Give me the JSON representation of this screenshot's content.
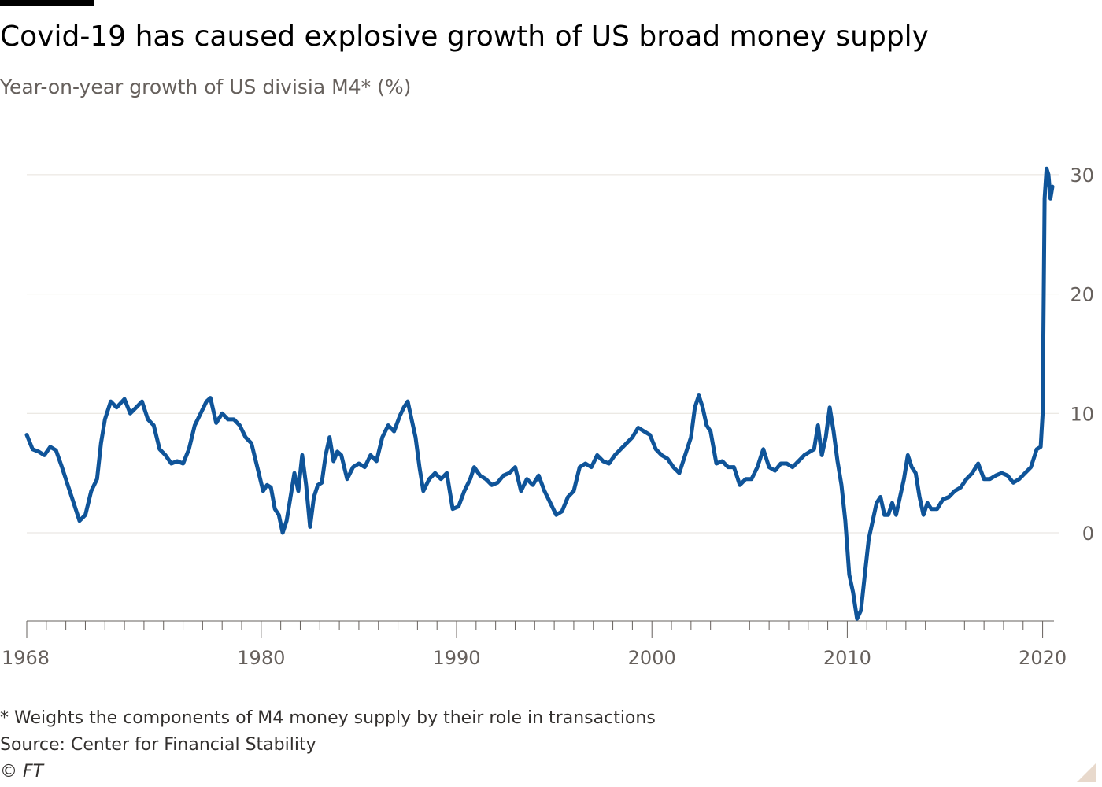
{
  "header": {
    "title": "Covid-19 has caused explosive growth of US broad money supply",
    "subtitle": "Year-on-year growth of US divisia M4* (%)"
  },
  "footer": {
    "note": "* Weights the components of M4 money supply by their role in transactions",
    "source": "Source: Center for Financial Stability",
    "copyright": "© FT"
  },
  "colors": {
    "line": "#0f5499",
    "grid": "#e6e2dc",
    "axis": "#66605c",
    "text": "#33302e"
  },
  "chart_data": {
    "type": "line",
    "title": "Covid-19 has caused explosive growth of US broad money supply",
    "subtitle": "Year-on-year growth of US divisia M4* (%)",
    "xlabel": "",
    "ylabel": "",
    "xlim": [
      1968,
      2020.5
    ],
    "ylim": [
      -7.5,
      31
    ],
    "y_ticks": [
      0,
      10,
      20,
      30
    ],
    "x_tick_labels": [
      "1968",
      "1980",
      "1990",
      "2000",
      "2010",
      "2020"
    ],
    "grid": "horizontal",
    "y_axis_position": "right",
    "series": [
      {
        "values": [
          [
            1968.0,
            8.2
          ],
          [
            1968.3,
            7.0
          ],
          [
            1968.6,
            6.8
          ],
          [
            1968.9,
            6.5
          ],
          [
            1969.2,
            7.2
          ],
          [
            1969.5,
            6.9
          ],
          [
            1969.8,
            5.5
          ],
          [
            1970.1,
            4.0
          ],
          [
            1970.4,
            2.5
          ],
          [
            1970.7,
            1.0
          ],
          [
            1971.0,
            1.5
          ],
          [
            1971.3,
            3.5
          ],
          [
            1971.6,
            4.5
          ],
          [
            1971.8,
            7.5
          ],
          [
            1972.0,
            9.5
          ],
          [
            1972.3,
            11.0
          ],
          [
            1972.6,
            10.5
          ],
          [
            1973.0,
            11.2
          ],
          [
            1973.3,
            10.0
          ],
          [
            1973.6,
            10.5
          ],
          [
            1973.9,
            11.0
          ],
          [
            1974.2,
            9.5
          ],
          [
            1974.5,
            9.0
          ],
          [
            1974.8,
            7.0
          ],
          [
            1975.1,
            6.5
          ],
          [
            1975.4,
            5.8
          ],
          [
            1975.7,
            6.0
          ],
          [
            1976.0,
            5.8
          ],
          [
            1976.3,
            7.0
          ],
          [
            1976.6,
            9.0
          ],
          [
            1976.9,
            10.0
          ],
          [
            1977.2,
            11.0
          ],
          [
            1977.4,
            11.3
          ],
          [
            1977.7,
            9.2
          ],
          [
            1978.0,
            10.0
          ],
          [
            1978.3,
            9.5
          ],
          [
            1978.6,
            9.5
          ],
          [
            1978.9,
            9.0
          ],
          [
            1979.2,
            8.0
          ],
          [
            1979.5,
            7.5
          ],
          [
            1979.8,
            5.5
          ],
          [
            1980.1,
            3.5
          ],
          [
            1980.3,
            4.0
          ],
          [
            1980.5,
            3.8
          ],
          [
            1980.7,
            2.0
          ],
          [
            1980.9,
            1.5
          ],
          [
            1981.1,
            0.0
          ],
          [
            1981.3,
            1.0
          ],
          [
            1981.5,
            3.0
          ],
          [
            1981.7,
            5.0
          ],
          [
            1981.9,
            3.5
          ],
          [
            1982.1,
            6.5
          ],
          [
            1982.3,
            4.0
          ],
          [
            1982.5,
            0.5
          ],
          [
            1982.7,
            3.0
          ],
          [
            1982.9,
            4.0
          ],
          [
            1983.1,
            4.2
          ],
          [
            1983.3,
            6.5
          ],
          [
            1983.5,
            8.0
          ],
          [
            1983.7,
            6.0
          ],
          [
            1983.9,
            6.8
          ],
          [
            1984.1,
            6.5
          ],
          [
            1984.4,
            4.5
          ],
          [
            1984.7,
            5.5
          ],
          [
            1985.0,
            5.8
          ],
          [
            1985.3,
            5.5
          ],
          [
            1985.6,
            6.5
          ],
          [
            1985.9,
            6.0
          ],
          [
            1986.2,
            8.0
          ],
          [
            1986.5,
            9.0
          ],
          [
            1986.8,
            8.5
          ],
          [
            1987.1,
            9.8
          ],
          [
            1987.3,
            10.5
          ],
          [
            1987.5,
            11.0
          ],
          [
            1987.7,
            9.5
          ],
          [
            1987.9,
            8.0
          ],
          [
            1988.1,
            5.5
          ],
          [
            1988.3,
            3.5
          ],
          [
            1988.6,
            4.5
          ],
          [
            1988.9,
            5.0
          ],
          [
            1989.2,
            4.5
          ],
          [
            1989.5,
            5.0
          ],
          [
            1989.8,
            2.0
          ],
          [
            1990.1,
            2.2
          ],
          [
            1990.4,
            3.5
          ],
          [
            1990.7,
            4.5
          ],
          [
            1990.9,
            5.5
          ],
          [
            1991.2,
            4.8
          ],
          [
            1991.5,
            4.5
          ],
          [
            1991.8,
            4.0
          ],
          [
            1992.1,
            4.2
          ],
          [
            1992.4,
            4.8
          ],
          [
            1992.7,
            5.0
          ],
          [
            1993.0,
            5.5
          ],
          [
            1993.3,
            3.5
          ],
          [
            1993.6,
            4.5
          ],
          [
            1993.9,
            4.0
          ],
          [
            1994.2,
            4.8
          ],
          [
            1994.5,
            3.5
          ],
          [
            1994.8,
            2.5
          ],
          [
            1995.1,
            1.5
          ],
          [
            1995.4,
            1.8
          ],
          [
            1995.7,
            3.0
          ],
          [
            1996.0,
            3.5
          ],
          [
            1996.3,
            5.5
          ],
          [
            1996.6,
            5.8
          ],
          [
            1996.9,
            5.5
          ],
          [
            1997.2,
            6.5
          ],
          [
            1997.5,
            6.0
          ],
          [
            1997.8,
            5.8
          ],
          [
            1998.1,
            6.5
          ],
          [
            1998.4,
            7.0
          ],
          [
            1998.7,
            7.5
          ],
          [
            1999.0,
            8.0
          ],
          [
            1999.3,
            8.8
          ],
          [
            1999.6,
            8.5
          ],
          [
            1999.9,
            8.2
          ],
          [
            2000.2,
            7.0
          ],
          [
            2000.5,
            6.5
          ],
          [
            2000.8,
            6.2
          ],
          [
            2001.1,
            5.5
          ],
          [
            2001.4,
            5.0
          ],
          [
            2001.7,
            6.5
          ],
          [
            2002.0,
            8.0
          ],
          [
            2002.2,
            10.5
          ],
          [
            2002.4,
            11.5
          ],
          [
            2002.6,
            10.5
          ],
          [
            2002.8,
            9.0
          ],
          [
            2003.0,
            8.5
          ],
          [
            2003.3,
            5.8
          ],
          [
            2003.6,
            6.0
          ],
          [
            2003.9,
            5.5
          ],
          [
            2004.2,
            5.5
          ],
          [
            2004.5,
            4.0
          ],
          [
            2004.8,
            4.5
          ],
          [
            2005.1,
            4.5
          ],
          [
            2005.4,
            5.5
          ],
          [
            2005.7,
            7.0
          ],
          [
            2006.0,
            5.5
          ],
          [
            2006.3,
            5.2
          ],
          [
            2006.6,
            5.8
          ],
          [
            2006.9,
            5.8
          ],
          [
            2007.2,
            5.5
          ],
          [
            2007.5,
            6.0
          ],
          [
            2007.8,
            6.5
          ],
          [
            2008.1,
            6.8
          ],
          [
            2008.3,
            7.0
          ],
          [
            2008.5,
            9.0
          ],
          [
            2008.7,
            6.5
          ],
          [
            2008.9,
            8.0
          ],
          [
            2009.1,
            10.5
          ],
          [
            2009.3,
            8.5
          ],
          [
            2009.5,
            6.0
          ],
          [
            2009.7,
            4.0
          ],
          [
            2009.9,
            1.0
          ],
          [
            2010.1,
            -3.5
          ],
          [
            2010.3,
            -5.0
          ],
          [
            2010.5,
            -7.2
          ],
          [
            2010.7,
            -6.5
          ],
          [
            2010.9,
            -3.5
          ],
          [
            2011.1,
            -0.5
          ],
          [
            2011.3,
            1.0
          ],
          [
            2011.5,
            2.5
          ],
          [
            2011.7,
            3.0
          ],
          [
            2011.9,
            1.5
          ],
          [
            2012.1,
            1.5
          ],
          [
            2012.3,
            2.5
          ],
          [
            2012.5,
            1.5
          ],
          [
            2012.7,
            3.0
          ],
          [
            2012.9,
            4.5
          ],
          [
            2013.1,
            6.5
          ],
          [
            2013.3,
            5.5
          ],
          [
            2013.5,
            5.0
          ],
          [
            2013.7,
            3.0
          ],
          [
            2013.9,
            1.5
          ],
          [
            2014.1,
            2.5
          ],
          [
            2014.3,
            2.0
          ],
          [
            2014.6,
            2.0
          ],
          [
            2014.9,
            2.8
          ],
          [
            2015.2,
            3.0
          ],
          [
            2015.5,
            3.5
          ],
          [
            2015.8,
            3.8
          ],
          [
            2016.1,
            4.5
          ],
          [
            2016.4,
            5.0
          ],
          [
            2016.7,
            5.8
          ],
          [
            2017.0,
            4.5
          ],
          [
            2017.3,
            4.5
          ],
          [
            2017.6,
            4.8
          ],
          [
            2017.9,
            5.0
          ],
          [
            2018.2,
            4.8
          ],
          [
            2018.5,
            4.2
          ],
          [
            2018.8,
            4.5
          ],
          [
            2019.1,
            5.0
          ],
          [
            2019.4,
            5.5
          ],
          [
            2019.7,
            7.0
          ],
          [
            2019.9,
            7.2
          ],
          [
            2020.0,
            10.0
          ],
          [
            2020.1,
            28.0
          ],
          [
            2020.2,
            30.5
          ],
          [
            2020.3,
            30.0
          ],
          [
            2020.4,
            28.0
          ],
          [
            2020.5,
            29.0
          ]
        ]
      }
    ]
  }
}
